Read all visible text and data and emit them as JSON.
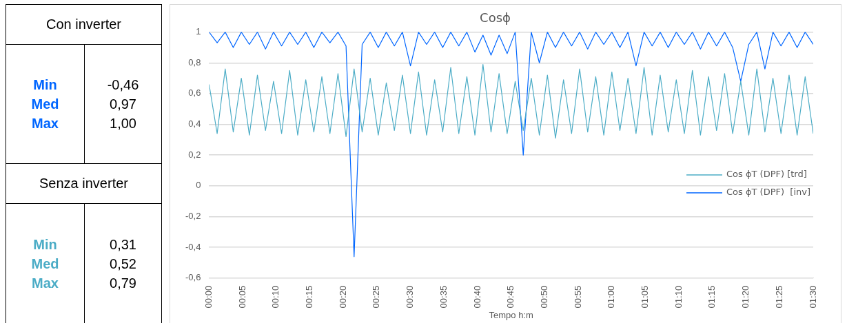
{
  "chart_data": [
    {
      "type": "other",
      "annotations": [
        "Con inverter",
        "Min",
        "Med",
        "Max",
        "-0,46",
        "0,97",
        "1,00",
        "Senza inverter",
        "Min",
        "Med",
        "Max",
        "0,31",
        "0,52",
        "0,79"
      ]
    },
    {
      "type": "line",
      "title": "Cosϕ",
      "xlabel": "Tempo h:m",
      "x": [
        0,
        0.02,
        0.04,
        0.06,
        0.08,
        0.1,
        0.12,
        0.14,
        0.16,
        0.18,
        0.2,
        0.22,
        0.24,
        0.26,
        0.28,
        0.3,
        0.32,
        0.34,
        0.36,
        0.38,
        0.4,
        0.42,
        0.44,
        0.46,
        0.48,
        0.5,
        0.52,
        0.54,
        0.56,
        0.58,
        0.6,
        0.62,
        0.64,
        0.66,
        0.68,
        0.7,
        0.72,
        0.74,
        0.76,
        0.78,
        0.8,
        0.82,
        0.84,
        0.86,
        0.88,
        0.9,
        0.92,
        0.94,
        0.96,
        0.98,
        1,
        1.02,
        1.04,
        1.06,
        1.08,
        1.1,
        1.12,
        1.14,
        1.16,
        1.18,
        1.2,
        1.22,
        1.24,
        1.26,
        1.28,
        1.3,
        1.32,
        1.34,
        1.36,
        1.38,
        1.4,
        1.42,
        1.44,
        1.46,
        1.48,
        1.5
      ],
      "series": [
        {
          "name": "Cos ϕT (DPF) [trd]",
          "color": "#4bacc6",
          "values": [
            0.66,
            0.34,
            0.76,
            0.35,
            0.7,
            0.33,
            0.72,
            0.36,
            0.68,
            0.34,
            0.75,
            0.33,
            0.69,
            0.35,
            0.71,
            0.34,
            0.73,
            0.32,
            0.76,
            0.35,
            0.7,
            0.33,
            0.67,
            0.36,
            0.72,
            0.34,
            0.74,
            0.33,
            0.69,
            0.35,
            0.77,
            0.34,
            0.71,
            0.33,
            0.79,
            0.35,
            0.73,
            0.34,
            0.68,
            0.36,
            0.7,
            0.33,
            0.72,
            0.31,
            0.69,
            0.34,
            0.76,
            0.35,
            0.71,
            0.33,
            0.74,
            0.36,
            0.7,
            0.34,
            0.77,
            0.33,
            0.72,
            0.35,
            0.69,
            0.34,
            0.75,
            0.33,
            0.71,
            0.36,
            0.73,
            0.34,
            0.68,
            0.33,
            0.76,
            0.35,
            0.7,
            0.34,
            0.72,
            0.33,
            0.71,
            0.34
          ]
        },
        {
          "name": "Cos ϕT (DPF)  [inv]",
          "color": "#0066ff",
          "values": [
            1,
            0.93,
            1,
            0.9,
            1,
            0.92,
            1,
            0.89,
            1,
            0.91,
            1,
            0.92,
            1,
            0.9,
            1,
            0.93,
            1,
            0.91,
            -0.46,
            0.92,
            1,
            0.9,
            1,
            0.91,
            1,
            0.78,
            1,
            0.92,
            1,
            0.9,
            1,
            0.91,
            1,
            0.87,
            0.98,
            0.85,
            0.98,
            0.86,
            1,
            0.2,
            1,
            0.8,
            1,
            0.9,
            1,
            0.91,
            1,
            0.89,
            1,
            0.92,
            1,
            0.9,
            1,
            0.78,
            1,
            0.91,
            1,
            0.9,
            1,
            0.92,
            1,
            0.89,
            1,
            0.91,
            1,
            0.9,
            0.68,
            0.92,
            1,
            0.76,
            1,
            0.91,
            1,
            0.9,
            1,
            0.92
          ]
        }
      ],
      "xlim": [
        0,
        1.5
      ],
      "xticks": [
        {
          "value": 0,
          "label": "00:00"
        },
        {
          "value": 0.0833,
          "label": "00:05"
        },
        {
          "value": 0.1667,
          "label": "00:10"
        },
        {
          "value": 0.25,
          "label": "00:15"
        },
        {
          "value": 0.3333,
          "label": "00:20"
        },
        {
          "value": 0.4167,
          "label": "00:25"
        },
        {
          "value": 0.5,
          "label": "00:30"
        },
        {
          "value": 0.5833,
          "label": "00:35"
        },
        {
          "value": 0.6667,
          "label": "00:40"
        },
        {
          "value": 0.75,
          "label": "00:45"
        },
        {
          "value": 0.8333,
          "label": "00:50"
        },
        {
          "value": 0.9167,
          "label": "00:55"
        },
        {
          "value": 1,
          "label": "01:00"
        },
        {
          "value": 1.0833,
          "label": "01:05"
        },
        {
          "value": 1.1667,
          "label": "01:10"
        },
        {
          "value": 1.25,
          "label": "01:15"
        },
        {
          "value": 1.3333,
          "label": "01:20"
        },
        {
          "value": 1.4167,
          "label": "01:25"
        },
        {
          "value": 1.5,
          "label": "01:30"
        }
      ],
      "ylim": [
        -0.6,
        1
      ],
      "yticks": [
        {
          "value": -0.6,
          "label": "-0,6"
        },
        {
          "value": -0.4,
          "label": "-0,4"
        },
        {
          "value": -0.2,
          "label": "-0,2"
        },
        0,
        {
          "value": 0.2,
          "label": "0,2"
        },
        {
          "value": 0.4,
          "label": "0,4"
        },
        {
          "value": 0.6,
          "label": "0,6"
        },
        {
          "value": 0.8,
          "label": "0,8"
        },
        1
      ],
      "grid": "y",
      "legend": "right",
      "marker": "none",
      "line_style": "solid"
    }
  ]
}
